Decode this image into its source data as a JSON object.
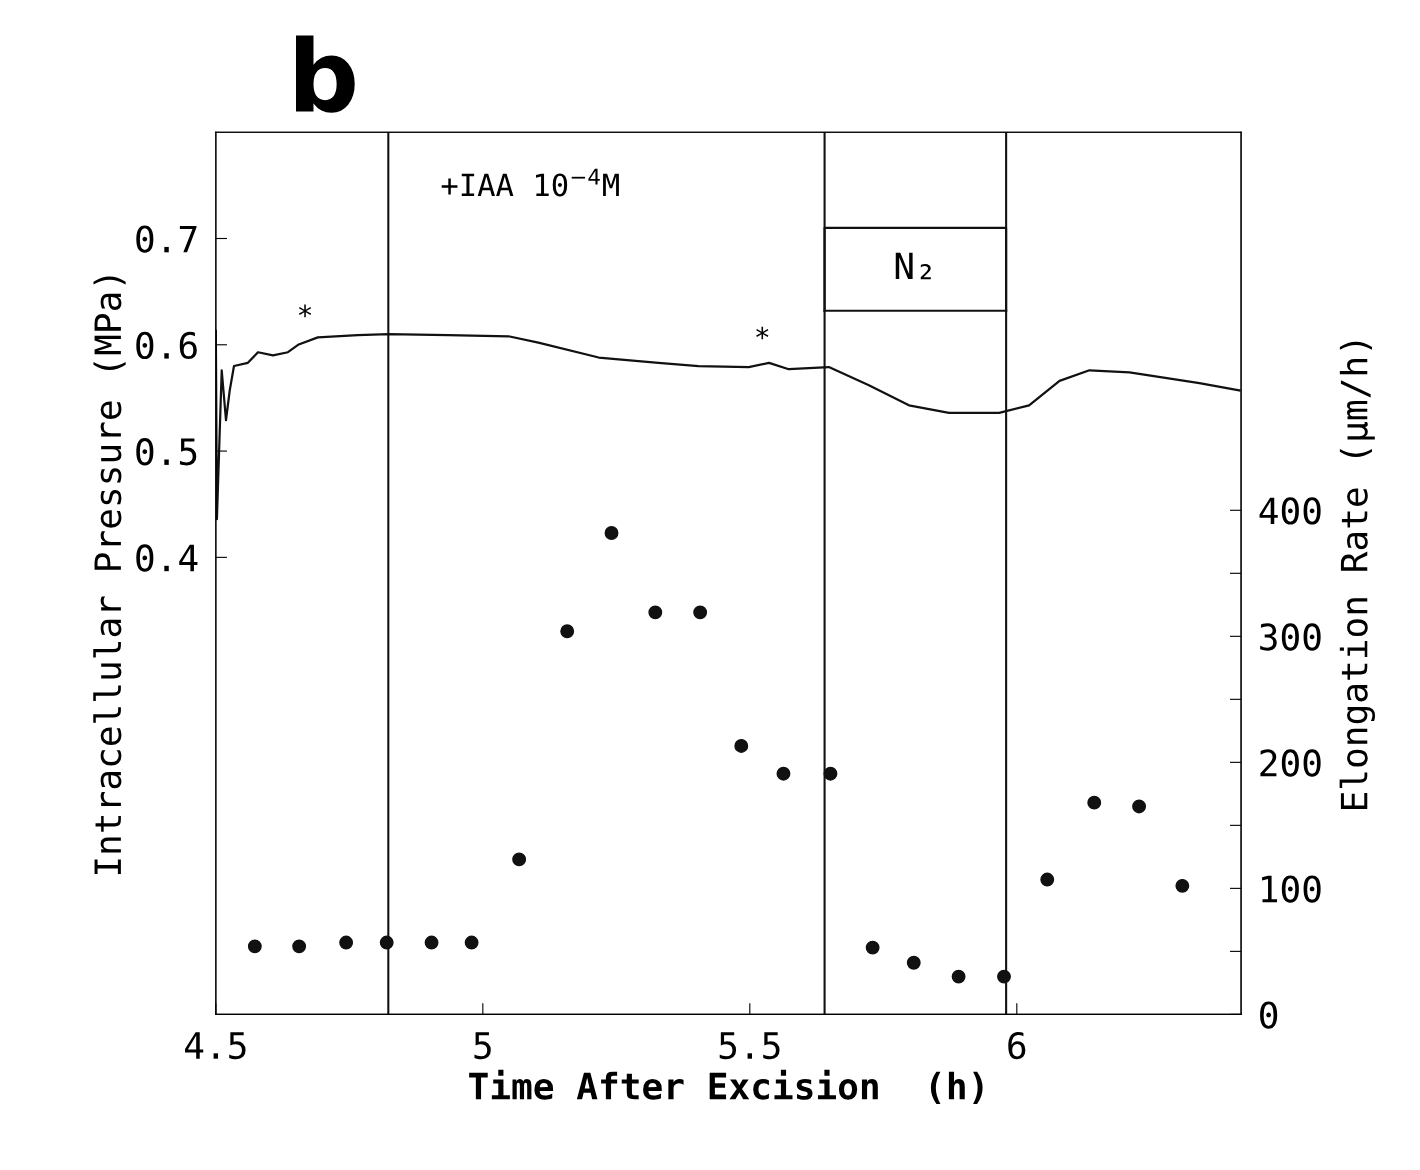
{
  "chart_data": {
    "type": "line",
    "title": "b",
    "xlabel": "Time After Excision  (h)",
    "ylabel": "Intracellular Pressure (MPa)",
    "y2label": "Elongation Rate (µm/h)",
    "xlim": [
      4.5,
      6.42
    ],
    "xticks": [
      4.5,
      5,
      5.5,
      6
    ],
    "ylim": [
      -0.03,
      0.8
    ],
    "yticks": [
      0.4,
      0.5,
      0.6,
      0.7
    ],
    "y2lim": [
      0,
      700
    ],
    "y2ticks": [
      0,
      {
        "value": 50,
        "label": null
      },
      100,
      {
        "value": 150,
        "label": null
      },
      200,
      {
        "value": 250,
        "label": null
      },
      300,
      {
        "value": 350,
        "label": null
      },
      400
    ],
    "grid": false,
    "series": [
      {
        "color": "#111111",
        "x": [
          4.5,
          4.502,
          4.511,
          4.519,
          4.526,
          4.534,
          4.56,
          4.579,
          4.607,
          4.635,
          4.654,
          4.691,
          4.766,
          4.823,
          4.935,
          5.048,
          5.104,
          5.217,
          5.329,
          5.404,
          5.498,
          5.536,
          5.573,
          5.648,
          5.723,
          5.798,
          5.873,
          5.967,
          6.023,
          6.08,
          6.136,
          6.211,
          6.342,
          6.417
        ],
        "values": [
          0.613,
          0.436,
          0.576,
          0.529,
          0.557,
          0.58,
          0.583,
          0.593,
          0.59,
          0.593,
          0.6,
          0.607,
          0.609,
          0.61,
          0.609,
          0.608,
          0.602,
          0.588,
          0.583,
          0.58,
          0.579,
          0.583,
          0.577,
          0.579,
          0.562,
          0.543,
          0.536,
          0.536,
          0.543,
          0.566,
          0.576,
          0.574,
          0.564,
          0.557
        ]
      },
      {
        "type": "scatter",
        "axis": "y2",
        "color": "#111111",
        "marker": "circle",
        "x": [
          4.573,
          4.656,
          4.744,
          4.82,
          4.904,
          4.979,
          5.068,
          5.158,
          5.241,
          5.323,
          5.407,
          5.484,
          5.563,
          5.651,
          5.73,
          5.807,
          5.891,
          5.976,
          6.057,
          6.145,
          6.229,
          6.31
        ],
        "values": [
          54,
          54,
          57,
          57,
          57,
          57,
          123,
          304,
          382,
          319,
          319,
          213,
          191,
          191,
          53,
          41,
          30,
          30,
          107,
          168,
          165,
          102
        ]
      }
    ],
    "ref_lines": [
      {
        "axis": "x",
        "value": 4.823,
        "color": "#111111"
      },
      {
        "axis": "x",
        "value": 5.64,
        "color": "#111111"
      },
      {
        "axis": "x",
        "value": 5.98,
        "color": "#111111"
      }
    ],
    "annotations": [
      "+IAA 10$^{−4}$M",
      "*",
      "*",
      "N₂"
    ]
  }
}
